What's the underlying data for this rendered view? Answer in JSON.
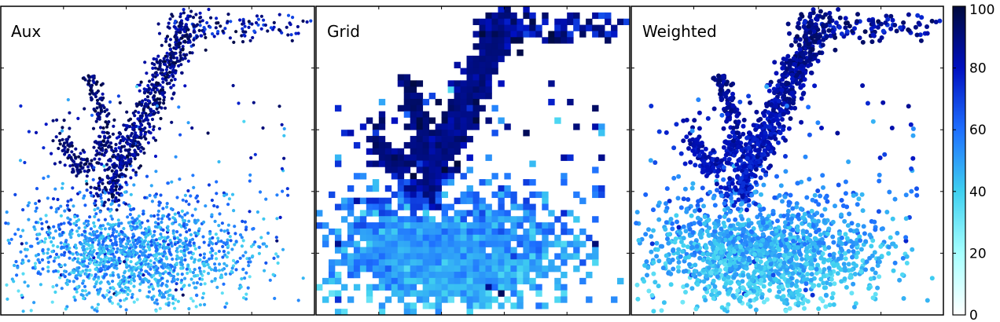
{
  "chart_data": [
    {
      "type": "scatter",
      "title": "Aux",
      "xlabel": "",
      "ylabel": "",
      "grid": false,
      "color_scale": {
        "min": 0,
        "max": 100,
        "low_color": "#a6ffff",
        "mid_color": "#1e6fff",
        "high_color": "#000a3d"
      }
    },
    {
      "type": "heatmap",
      "title": "Grid",
      "xlabel": "",
      "ylabel": "",
      "grid": false,
      "color_scale": {
        "min": 0,
        "max": 100,
        "low_color": "#a6ffff",
        "mid_color": "#1e6fff",
        "high_color": "#000a3d"
      }
    },
    {
      "type": "scatter",
      "title": "Weighted",
      "xlabel": "",
      "ylabel": "",
      "grid": false,
      "color_scale": {
        "min": 0,
        "max": 100,
        "low_color": "#a6ffff",
        "mid_color": "#1e6fff",
        "high_color": "#000a3d"
      }
    }
  ],
  "colorbar": {
    "min": 0,
    "max": 100,
    "ticks": [
      "0",
      "20",
      "40",
      "60",
      "80",
      "100"
    ],
    "colors": [
      "#ffffff",
      "#a6ffff",
      "#3fd0f0",
      "#1e6fff",
      "#0010c0",
      "#000a3d"
    ]
  }
}
